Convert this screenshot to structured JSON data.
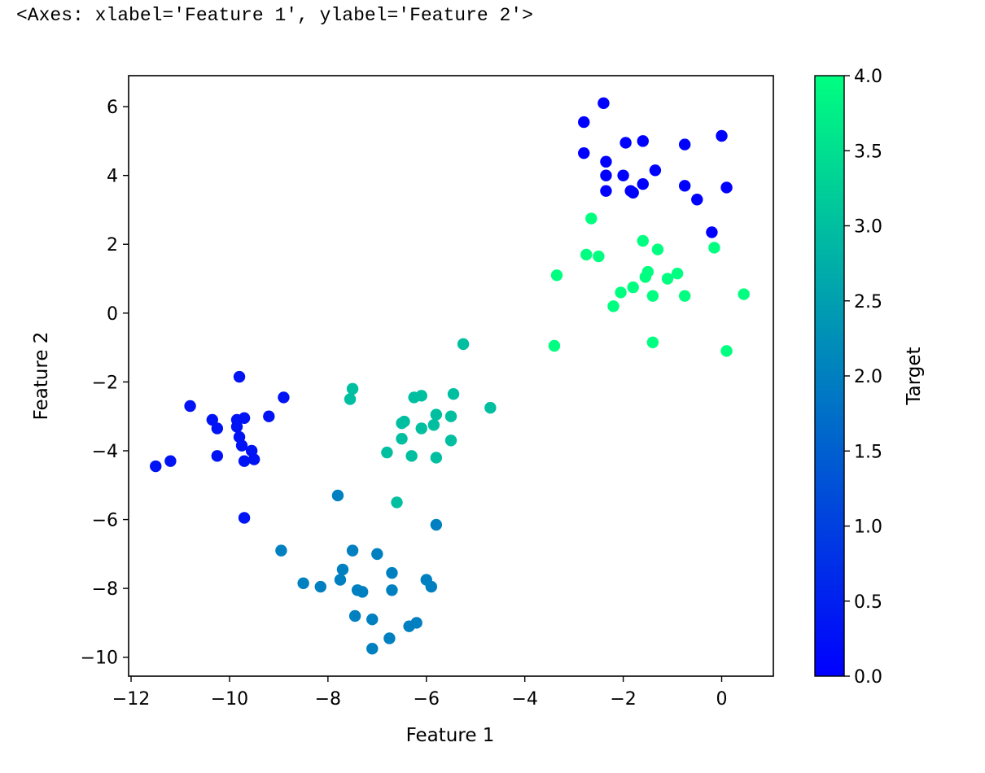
{
  "cell_output": "<Axes: xlabel='Feature 1', ylabel='Feature 2'>",
  "chart_data": {
    "type": "scatter",
    "title": "",
    "xlabel": "Feature 1",
    "ylabel": "Feature 2",
    "xlim": [
      -12.05,
      1.05
    ],
    "ylim": [
      -10.55,
      6.9
    ],
    "xticks": [
      -12,
      -10,
      -8,
      -6,
      -4,
      -2,
      0
    ],
    "xtick_labels": [
      "−12",
      "−10",
      "−8",
      "−6",
      "−4",
      "−2",
      "0"
    ],
    "yticks": [
      -10,
      -8,
      -6,
      -4,
      -2,
      0,
      2,
      4,
      6
    ],
    "ytick_labels": [
      "−10",
      "−8",
      "−6",
      "−4",
      "−2",
      "0",
      "2",
      "4",
      "6"
    ],
    "grid": false,
    "colormap": "winter",
    "colormap_colors": [
      "#0000ff",
      "#00ff80"
    ],
    "colorbar": {
      "label": "Target",
      "range": [
        0.0,
        4.0
      ],
      "ticks": [
        0.0,
        0.5,
        1.0,
        1.5,
        2.0,
        2.5,
        3.0,
        3.5,
        4.0
      ],
      "tick_labels": [
        "0.0",
        "0.5",
        "1.0",
        "1.5",
        "2.0",
        "2.5",
        "3.0",
        "3.5",
        "4.0"
      ]
    },
    "points": [
      {
        "x": -2.4,
        "y": 6.1,
        "c": 0
      },
      {
        "x": -2.8,
        "y": 5.55,
        "c": 0
      },
      {
        "x": 0.0,
        "y": 5.15,
        "c": 0
      },
      {
        "x": -1.95,
        "y": 4.95,
        "c": 0
      },
      {
        "x": -1.6,
        "y": 5.0,
        "c": 0
      },
      {
        "x": -0.75,
        "y": 4.9,
        "c": 0
      },
      {
        "x": -2.8,
        "y": 4.65,
        "c": 0
      },
      {
        "x": -2.35,
        "y": 4.4,
        "c": 0
      },
      {
        "x": -1.35,
        "y": 4.15,
        "c": 0
      },
      {
        "x": -2.35,
        "y": 4.0,
        "c": 0
      },
      {
        "x": -2.0,
        "y": 4.0,
        "c": 0
      },
      {
        "x": -1.6,
        "y": 3.75,
        "c": 0
      },
      {
        "x": -0.75,
        "y": 3.7,
        "c": 0
      },
      {
        "x": 0.1,
        "y": 3.65,
        "c": 0
      },
      {
        "x": -2.35,
        "y": 3.55,
        "c": 0
      },
      {
        "x": -1.85,
        "y": 3.55,
        "c": 0
      },
      {
        "x": -1.8,
        "y": 3.5,
        "c": 0
      },
      {
        "x": -0.5,
        "y": 3.3,
        "c": 0
      },
      {
        "x": -0.2,
        "y": 2.35,
        "c": 0
      },
      {
        "x": -9.8,
        "y": -1.85,
        "c": 0.3
      },
      {
        "x": -8.9,
        "y": -2.45,
        "c": 0.3
      },
      {
        "x": -10.8,
        "y": -2.7,
        "c": 0.3
      },
      {
        "x": -9.2,
        "y": -3.0,
        "c": 0.3
      },
      {
        "x": -10.35,
        "y": -3.1,
        "c": 0.3
      },
      {
        "x": -9.85,
        "y": -3.1,
        "c": 0.3
      },
      {
        "x": -9.7,
        "y": -3.05,
        "c": 0.3
      },
      {
        "x": -10.25,
        "y": -3.35,
        "c": 0.3
      },
      {
        "x": -9.85,
        "y": -3.3,
        "c": 0.3
      },
      {
        "x": -9.8,
        "y": -3.6,
        "c": 0.3
      },
      {
        "x": -9.75,
        "y": -3.85,
        "c": 0.3
      },
      {
        "x": -9.55,
        "y": -4.0,
        "c": 0.3
      },
      {
        "x": -10.25,
        "y": -4.15,
        "c": 0.3
      },
      {
        "x": -9.5,
        "y": -4.25,
        "c": 0.3
      },
      {
        "x": -9.7,
        "y": -4.3,
        "c": 0.3
      },
      {
        "x": -11.2,
        "y": -4.3,
        "c": 0.3
      },
      {
        "x": -11.5,
        "y": -4.45,
        "c": 0.3
      },
      {
        "x": -9.7,
        "y": -5.95,
        "c": 0.3
      },
      {
        "x": -7.8,
        "y": -5.3,
        "c": 2
      },
      {
        "x": -5.8,
        "y": -6.15,
        "c": 2
      },
      {
        "x": -8.95,
        "y": -6.9,
        "c": 2
      },
      {
        "x": -7.5,
        "y": -6.9,
        "c": 2
      },
      {
        "x": -7.0,
        "y": -7.0,
        "c": 2
      },
      {
        "x": -7.7,
        "y": -7.45,
        "c": 2
      },
      {
        "x": -6.7,
        "y": -7.55,
        "c": 2
      },
      {
        "x": -7.75,
        "y": -7.75,
        "c": 2
      },
      {
        "x": -6.0,
        "y": -7.75,
        "c": 2
      },
      {
        "x": -8.5,
        "y": -7.85,
        "c": 2
      },
      {
        "x": -8.15,
        "y": -7.95,
        "c": 2
      },
      {
        "x": -5.9,
        "y": -7.95,
        "c": 2
      },
      {
        "x": -7.4,
        "y": -8.05,
        "c": 2
      },
      {
        "x": -7.3,
        "y": -8.1,
        "c": 2
      },
      {
        "x": -6.7,
        "y": -8.05,
        "c": 2
      },
      {
        "x": -7.45,
        "y": -8.8,
        "c": 2
      },
      {
        "x": -7.1,
        "y": -8.9,
        "c": 2
      },
      {
        "x": -6.2,
        "y": -9.0,
        "c": 2
      },
      {
        "x": -6.35,
        "y": -9.1,
        "c": 2
      },
      {
        "x": -6.75,
        "y": -9.45,
        "c": 2
      },
      {
        "x": -7.1,
        "y": -9.75,
        "c": 2
      },
      {
        "x": -5.25,
        "y": -0.9,
        "c": 3
      },
      {
        "x": -7.5,
        "y": -2.2,
        "c": 3
      },
      {
        "x": -7.55,
        "y": -2.5,
        "c": 3
      },
      {
        "x": -5.45,
        "y": -2.35,
        "c": 3
      },
      {
        "x": -6.1,
        "y": -2.4,
        "c": 3
      },
      {
        "x": -6.25,
        "y": -2.45,
        "c": 3
      },
      {
        "x": -4.7,
        "y": -2.75,
        "c": 3
      },
      {
        "x": -5.8,
        "y": -2.95,
        "c": 3
      },
      {
        "x": -5.5,
        "y": -3.0,
        "c": 3
      },
      {
        "x": -6.45,
        "y": -3.15,
        "c": 3
      },
      {
        "x": -6.5,
        "y": -3.2,
        "c": 3
      },
      {
        "x": -5.85,
        "y": -3.25,
        "c": 3
      },
      {
        "x": -6.1,
        "y": -3.35,
        "c": 3
      },
      {
        "x": -6.5,
        "y": -3.65,
        "c": 3
      },
      {
        "x": -5.5,
        "y": -3.7,
        "c": 3
      },
      {
        "x": -6.8,
        "y": -4.05,
        "c": 3
      },
      {
        "x": -6.3,
        "y": -4.15,
        "c": 3
      },
      {
        "x": -5.8,
        "y": -4.2,
        "c": 3
      },
      {
        "x": -6.6,
        "y": -5.5,
        "c": 3
      },
      {
        "x": -2.65,
        "y": 2.75,
        "c": 4
      },
      {
        "x": -1.6,
        "y": 2.1,
        "c": 4
      },
      {
        "x": -0.15,
        "y": 1.9,
        "c": 4
      },
      {
        "x": -1.3,
        "y": 1.85,
        "c": 4
      },
      {
        "x": -2.75,
        "y": 1.7,
        "c": 4
      },
      {
        "x": -2.5,
        "y": 1.65,
        "c": 4
      },
      {
        "x": -1.5,
        "y": 1.2,
        "c": 4
      },
      {
        "x": -0.9,
        "y": 1.15,
        "c": 4
      },
      {
        "x": -3.35,
        "y": 1.1,
        "c": 4
      },
      {
        "x": -1.55,
        "y": 1.05,
        "c": 4
      },
      {
        "x": -1.1,
        "y": 1.0,
        "c": 4
      },
      {
        "x": -1.8,
        "y": 0.75,
        "c": 4
      },
      {
        "x": -2.05,
        "y": 0.6,
        "c": 4
      },
      {
        "x": 0.45,
        "y": 0.55,
        "c": 4
      },
      {
        "x": -1.4,
        "y": 0.5,
        "c": 4
      },
      {
        "x": -0.75,
        "y": 0.5,
        "c": 4
      },
      {
        "x": -2.2,
        "y": 0.2,
        "c": 4
      },
      {
        "x": -3.4,
        "y": -0.95,
        "c": 4
      },
      {
        "x": -1.4,
        "y": -0.85,
        "c": 4
      },
      {
        "x": 0.1,
        "y": -1.1,
        "c": 4
      }
    ]
  }
}
